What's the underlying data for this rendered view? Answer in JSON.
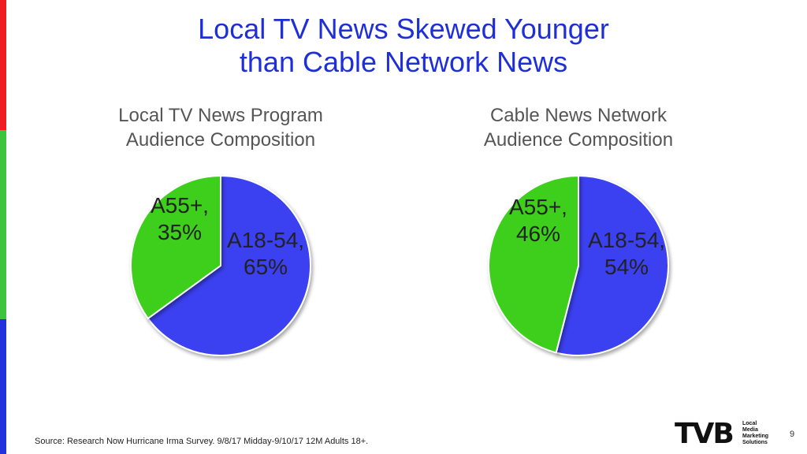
{
  "slide": {
    "title_lines": [
      "Local TV News Skewed Younger",
      "than Cable Network News"
    ],
    "source": "Source: Research Now Hurricane Irma Survey. 9/8/17 Midday-9/10/17 12M Adults 18+.",
    "page_number": "9",
    "logo": {
      "wordmark": "TVB",
      "tagline": [
        "Local",
        "Media",
        "Marketing",
        "Solutions"
      ]
    },
    "edge_colors": [
      "#ee1c25",
      "#3cc43c",
      "#2233dd"
    ]
  },
  "chart_data": [
    {
      "type": "pie",
      "title_lines": [
        "Local TV News Program",
        "Audience Composition"
      ],
      "slices": [
        {
          "label": "A18-54",
          "value": 65,
          "display": [
            "A18-54,",
            "65%"
          ],
          "color": "#3a3ff0"
        },
        {
          "label": "A55+",
          "value": 35,
          "display": [
            "A55+,",
            "35%"
          ],
          "color": "#3ccf1e"
        }
      ],
      "legend": "none"
    },
    {
      "type": "pie",
      "title_lines": [
        "Cable News Network",
        "Audience Composition"
      ],
      "slices": [
        {
          "label": "A18-54",
          "value": 54,
          "display": [
            "A18-54,",
            "54%"
          ],
          "color": "#3a3ff0"
        },
        {
          "label": "A55+",
          "value": 46,
          "display": [
            "A55+,",
            "46%"
          ],
          "color": "#3ccf1e"
        }
      ],
      "legend": "none"
    }
  ]
}
